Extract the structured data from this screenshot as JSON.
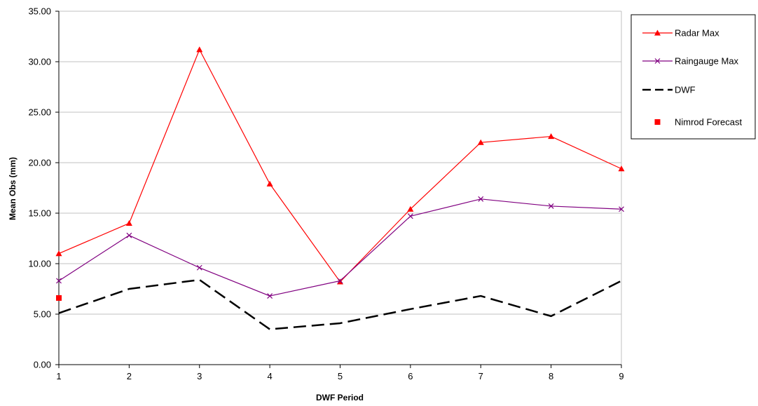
{
  "chart_data": {
    "type": "line",
    "title": "",
    "xlabel": "DWF Period",
    "ylabel": "Mean Obs (mm)",
    "x": [
      1,
      2,
      3,
      4,
      5,
      6,
      7,
      8,
      9
    ],
    "xlim": [
      1,
      9
    ],
    "ylim": [
      0,
      35
    ],
    "ytick_step": 5,
    "ytick_labels": [
      "0.00",
      "5.00",
      "10.00",
      "15.00",
      "20.00",
      "25.00",
      "30.00",
      "35.00"
    ],
    "xtick_labels": [
      "1",
      "2",
      "3",
      "4",
      "5",
      "6",
      "7",
      "8",
      "9"
    ],
    "grid": "horizontal",
    "legend_position": "right",
    "series": [
      {
        "name": "Radar Max",
        "color": "#ff0000",
        "marker": "triangle",
        "line": "solid",
        "values": [
          11.0,
          14.0,
          31.2,
          17.9,
          8.2,
          15.4,
          22.0,
          22.6,
          19.4
        ]
      },
      {
        "name": "Raingauge Max",
        "color": "#800080",
        "marker": "x",
        "line": "solid",
        "values": [
          8.3,
          12.8,
          9.6,
          6.8,
          8.3,
          14.7,
          16.4,
          15.7,
          15.4
        ]
      },
      {
        "name": "DWF",
        "color": "#000000",
        "marker": "none",
        "line": "dashed",
        "values": [
          5.1,
          7.5,
          8.4,
          3.5,
          4.1,
          5.5,
          6.8,
          4.8,
          8.3
        ]
      },
      {
        "name": "Nimrod Forecast",
        "color": "#ff0000",
        "marker": "square",
        "line": "none",
        "points": [
          {
            "x": 1,
            "y": 6.6
          }
        ]
      }
    ]
  }
}
